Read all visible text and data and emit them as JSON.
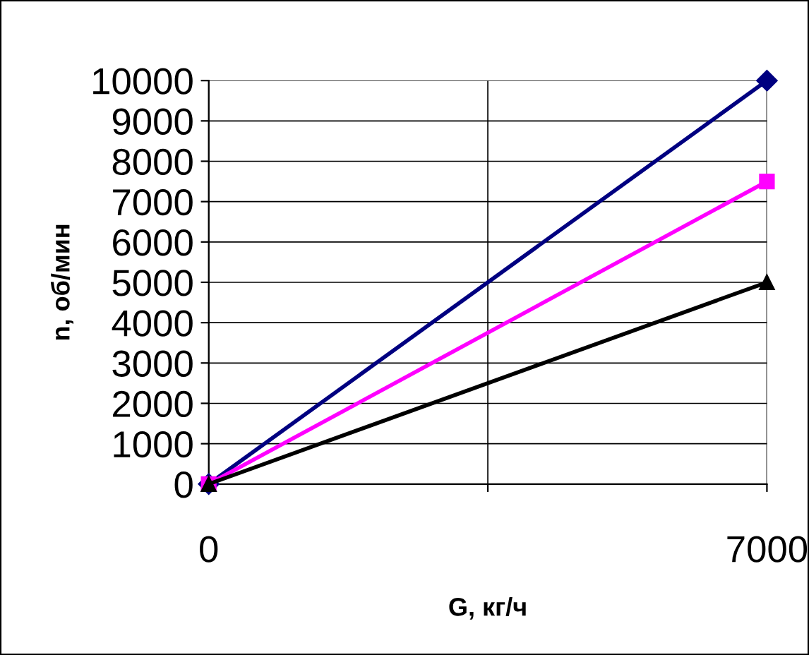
{
  "chart_data": {
    "type": "line",
    "xlabel": "G, кг/ч",
    "ylabel": "n, об/мин",
    "x": [
      0,
      7000
    ],
    "series": [
      {
        "color": "#000080",
        "values": [
          0,
          10000
        ],
        "marker": "diamond"
      },
      {
        "color": "#ff00ff",
        "values": [
          0,
          7500
        ],
        "marker": "square"
      },
      {
        "color": "#000000",
        "values": [
          0,
          5000
        ],
        "marker": "triangle"
      }
    ],
    "xlim": [
      0,
      7000
    ],
    "xticks": [
      0,
      {
        "value": 3500,
        "label": null
      },
      7000
    ],
    "ylim": [
      0,
      10000
    ],
    "yticks": [
      0,
      1000,
      2000,
      3000,
      4000,
      5000,
      6000,
      7000,
      8000,
      9000,
      10000
    ],
    "grid": true,
    "legend": false,
    "line_style": "solid"
  }
}
